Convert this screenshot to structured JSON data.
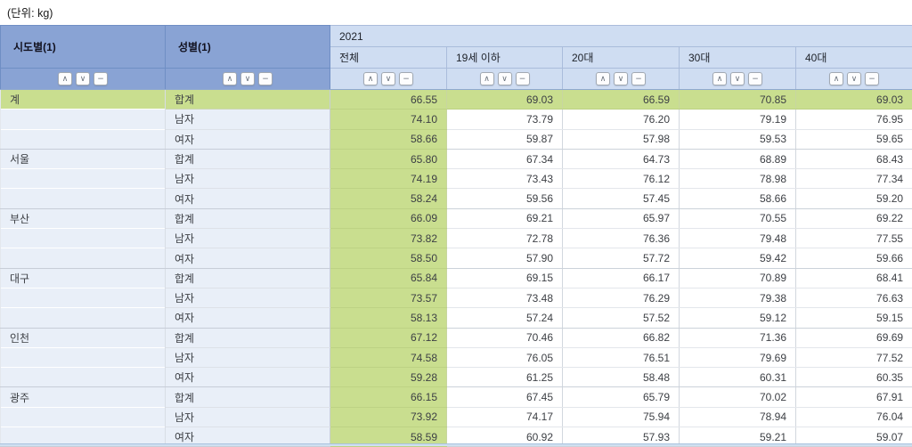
{
  "unit_label": "(단위: kg)",
  "colors": {
    "header_dark_blue": "#89a3d4",
    "header_light_blue": "#cfddf2",
    "highlight_green": "#c9de8f",
    "label_cell_blue": "#e9eff8"
  },
  "table": {
    "col_region": "시도별(1)",
    "col_gender": "성별(1)",
    "year": "2021",
    "age_columns": [
      "전체",
      "19세 이하",
      "20대",
      "30대",
      "40대"
    ],
    "sort_buttons": [
      {
        "name": "sort-asc-button",
        "glyph": "∧"
      },
      {
        "name": "sort-desc-button",
        "glyph": "∨"
      },
      {
        "name": "sort-clear-button",
        "glyph": "−"
      }
    ],
    "regions": [
      {
        "name": "계",
        "rows": [
          {
            "gender": "합계",
            "highlight": true,
            "values": [
              "66.55",
              "69.03",
              "66.59",
              "70.85",
              "69.03"
            ]
          },
          {
            "gender": "남자",
            "values": [
              "74.10",
              "73.79",
              "76.20",
              "79.19",
              "76.95"
            ]
          },
          {
            "gender": "여자",
            "values": [
              "58.66",
              "59.87",
              "57.98",
              "59.53",
              "59.65"
            ]
          }
        ]
      },
      {
        "name": "서울",
        "rows": [
          {
            "gender": "합계",
            "values": [
              "65.80",
              "67.34",
              "64.73",
              "68.89",
              "68.43"
            ]
          },
          {
            "gender": "남자",
            "values": [
              "74.19",
              "73.43",
              "76.12",
              "78.98",
              "77.34"
            ]
          },
          {
            "gender": "여자",
            "values": [
              "58.24",
              "59.56",
              "57.45",
              "58.66",
              "59.20"
            ]
          }
        ]
      },
      {
        "name": "부산",
        "rows": [
          {
            "gender": "합계",
            "values": [
              "66.09",
              "69.21",
              "65.97",
              "70.55",
              "69.22"
            ]
          },
          {
            "gender": "남자",
            "values": [
              "73.82",
              "72.78",
              "76.36",
              "79.48",
              "77.55"
            ]
          },
          {
            "gender": "여자",
            "values": [
              "58.50",
              "57.90",
              "57.72",
              "59.42",
              "59.66"
            ]
          }
        ]
      },
      {
        "name": "대구",
        "rows": [
          {
            "gender": "합계",
            "values": [
              "65.84",
              "69.15",
              "66.17",
              "70.89",
              "68.41"
            ]
          },
          {
            "gender": "남자",
            "values": [
              "73.57",
              "73.48",
              "76.29",
              "79.38",
              "76.63"
            ]
          },
          {
            "gender": "여자",
            "values": [
              "58.13",
              "57.24",
              "57.52",
              "59.12",
              "59.15"
            ]
          }
        ]
      },
      {
        "name": "인천",
        "rows": [
          {
            "gender": "합계",
            "values": [
              "67.12",
              "70.46",
              "66.82",
              "71.36",
              "69.69"
            ]
          },
          {
            "gender": "남자",
            "values": [
              "74.58",
              "76.05",
              "76.51",
              "79.69",
              "77.52"
            ]
          },
          {
            "gender": "여자",
            "values": [
              "59.28",
              "61.25",
              "58.48",
              "60.31",
              "60.35"
            ]
          }
        ]
      },
      {
        "name": "광주",
        "rows": [
          {
            "gender": "합계",
            "values": [
              "66.15",
              "67.45",
              "65.79",
              "70.02",
              "67.91"
            ]
          },
          {
            "gender": "남자",
            "values": [
              "73.92",
              "74.17",
              "75.94",
              "78.94",
              "76.04"
            ]
          },
          {
            "gender": "여자",
            "values": [
              "58.59",
              "60.92",
              "57.93",
              "59.21",
              "59.07"
            ]
          }
        ]
      }
    ]
  }
}
